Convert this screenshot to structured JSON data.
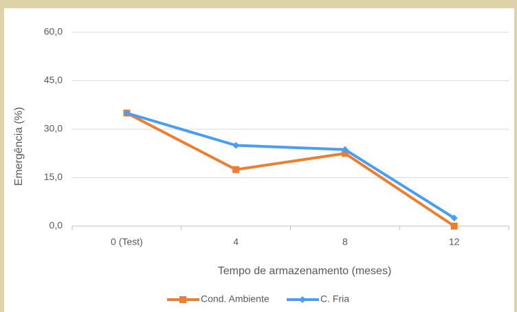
{
  "chart_data": {
    "type": "line",
    "categories": [
      "0 (Test)",
      "4",
      "8",
      "12"
    ],
    "series": [
      {
        "name": "Cond. Ambiente",
        "color": "#ed7d31",
        "values": [
          35,
          17.5,
          22.5,
          0
        ]
      },
      {
        "name": "C. Fria",
        "color": "#4a9ef2",
        "values": [
          35,
          25,
          23.7,
          2.5
        ]
      }
    ],
    "ylim": [
      0,
      60
    ],
    "yticks": [
      {
        "value": 0,
        "label": "0,0"
      },
      {
        "value": 15,
        "label": "15,0"
      },
      {
        "value": 30,
        "label": "30,0"
      },
      {
        "value": 45,
        "label": "45,0"
      },
      {
        "value": 60,
        "label": "60,0"
      }
    ],
    "grid": true,
    "xlabel": "Tempo de armazenamento (meses)",
    "ylabel": "Emergência (%)",
    "legend": "bottom"
  }
}
